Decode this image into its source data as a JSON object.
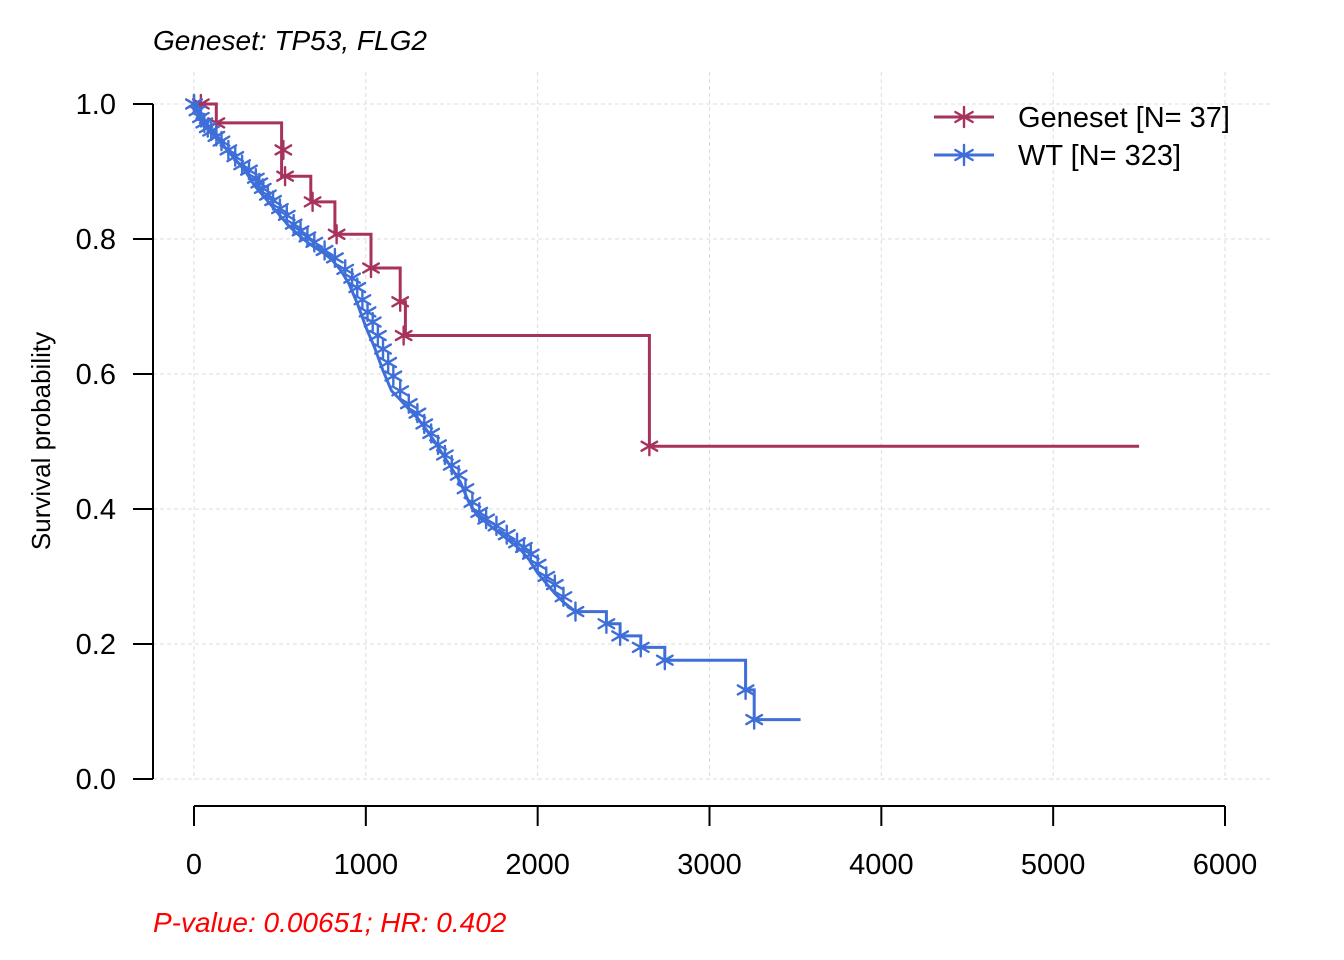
{
  "chart_data": {
    "type": "line",
    "title": "Geneset: TP53, FLG2",
    "xlabel": "",
    "ylabel": "Survival probability",
    "xlim": [
      0,
      6000
    ],
    "ylim": [
      0,
      1
    ],
    "x_ticks": [
      0,
      1000,
      2000,
      3000,
      4000,
      5000,
      6000
    ],
    "x_tick_labels": [
      "0",
      "1000",
      "2000",
      "3000",
      "4000",
      "5000",
      "6000"
    ],
    "y_ticks": [
      0,
      0.2,
      0.4,
      0.6,
      0.8,
      1.0
    ],
    "y_tick_labels": [
      "0.0",
      "0.2",
      "0.4",
      "0.6",
      "0.8",
      "1.0"
    ],
    "grid": true,
    "legend_position": "top-right",
    "annotation": "P-value: 0.00651; HR: 0.402",
    "annotation_color": "#ff0000",
    "series": [
      {
        "name": "Geneset [N= 37]",
        "color": "#a8325e",
        "x": [
          0,
          130,
          130,
          510,
          510,
          680,
          680,
          820,
          820,
          1030,
          1030,
          1200,
          1200,
          1230,
          1230,
          2650,
          2650,
          5500
        ],
        "y": [
          1.0,
          1.0,
          0.972,
          0.972,
          0.893,
          0.893,
          0.855,
          0.855,
          0.807,
          0.807,
          0.757,
          0.757,
          0.707,
          0.707,
          0.657,
          0.657,
          0.493,
          0.493
        ],
        "censor_x": [
          0,
          40,
          130,
          520,
          530,
          690,
          830,
          1030,
          1200,
          1220,
          2650
        ],
        "censor_y": [
          1.0,
          1.0,
          0.972,
          0.932,
          0.893,
          0.855,
          0.807,
          0.757,
          0.707,
          0.657,
          0.493
        ]
      },
      {
        "name": "WT [N= 323]",
        "color": "#3e6ed8",
        "x": [
          0,
          50,
          100,
          150,
          200,
          250,
          300,
          350,
          400,
          450,
          500,
          550,
          600,
          650,
          700,
          750,
          800,
          850,
          900,
          950,
          1000,
          1050,
          1100,
          1150,
          1200,
          1250,
          1300,
          1350,
          1400,
          1450,
          1500,
          1550,
          1600,
          1650,
          1700,
          1750,
          1800,
          1850,
          1900,
          1950,
          2000,
          2050,
          2100,
          2150,
          2220,
          2220,
          2400,
          2400,
          2480,
          2480,
          2600,
          2600,
          2740,
          2740,
          3210,
          3210,
          3260,
          3260,
          3530
        ],
        "y": [
          1.0,
          0.978,
          0.96,
          0.945,
          0.93,
          0.915,
          0.9,
          0.88,
          0.865,
          0.85,
          0.835,
          0.82,
          0.808,
          0.797,
          0.788,
          0.78,
          0.77,
          0.755,
          0.735,
          0.705,
          0.67,
          0.64,
          0.605,
          0.575,
          0.562,
          0.548,
          0.535,
          0.518,
          0.5,
          0.48,
          0.46,
          0.44,
          0.41,
          0.39,
          0.38,
          0.37,
          0.36,
          0.35,
          0.34,
          0.325,
          0.305,
          0.29,
          0.275,
          0.262,
          0.248,
          0.248,
          0.248,
          0.23,
          0.23,
          0.212,
          0.212,
          0.195,
          0.195,
          0.176,
          0.176,
          0.132,
          0.132,
          0.088,
          0.088
        ],
        "censor_x": [
          0,
          20,
          40,
          60,
          80,
          100,
          130,
          160,
          200,
          240,
          280,
          320,
          360,
          380,
          400,
          430,
          460,
          500,
          540,
          580,
          620,
          660,
          700,
          760,
          820,
          880,
          920,
          950,
          980,
          1010,
          1040,
          1070,
          1100,
          1130,
          1160,
          1200,
          1250,
          1300,
          1340,
          1380,
          1420,
          1460,
          1500,
          1540,
          1580,
          1620,
          1660,
          1700,
          1760,
          1820,
          1880,
          1920,
          1960,
          2000,
          2050,
          2100,
          2150,
          2220,
          2400,
          2480,
          2600,
          2740,
          3210,
          3260
        ],
        "censor_y": [
          1.0,
          0.99,
          0.98,
          0.972,
          0.965,
          0.96,
          0.952,
          0.945,
          0.932,
          0.922,
          0.91,
          0.902,
          0.89,
          0.883,
          0.875,
          0.865,
          0.857,
          0.845,
          0.835,
          0.822,
          0.812,
          0.803,
          0.795,
          0.783,
          0.772,
          0.755,
          0.742,
          0.728,
          0.71,
          0.692,
          0.677,
          0.657,
          0.637,
          0.617,
          0.597,
          0.575,
          0.556,
          0.542,
          0.526,
          0.512,
          0.495,
          0.48,
          0.465,
          0.45,
          0.43,
          0.41,
          0.395,
          0.385,
          0.375,
          0.362,
          0.35,
          0.343,
          0.333,
          0.318,
          0.3,
          0.288,
          0.27,
          0.248,
          0.23,
          0.212,
          0.195,
          0.176,
          0.132,
          0.088
        ]
      }
    ]
  }
}
